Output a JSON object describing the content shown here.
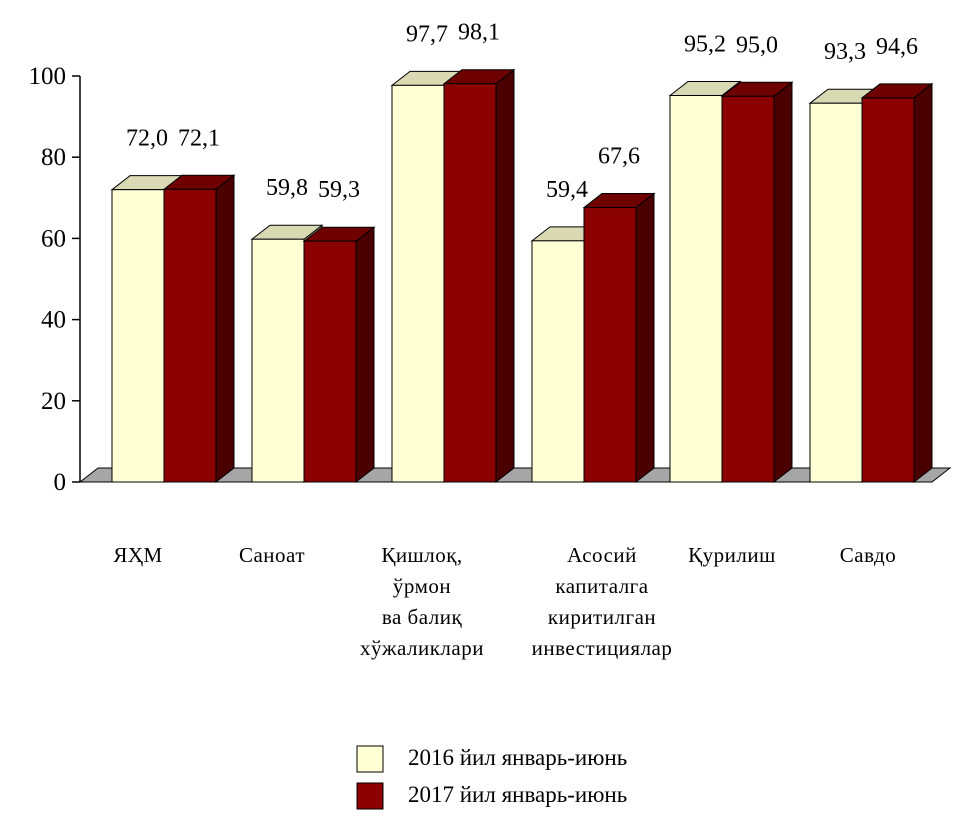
{
  "chart_data": {
    "type": "bar",
    "bar_style": "3d",
    "categories": [
      [
        "ЯҲМ"
      ],
      [
        "Саноат"
      ],
      [
        "Қишлоқ,",
        "ўрмон",
        "ва балиқ",
        "хўжаликлари"
      ],
      [
        "Асосий",
        "капиталга",
        "киритилган",
        "инвестициялар"
      ],
      [
        "Қурилиш"
      ],
      [
        "Савдо"
      ]
    ],
    "series": [
      {
        "name": "2016 йил январь-июнь",
        "values": [
          72.0,
          59.8,
          97.7,
          59.4,
          95.2,
          93.3
        ],
        "labels": [
          "72,0",
          "59,8",
          "97,7",
          "59,4",
          "95,2",
          "93,3"
        ],
        "color": "#ffffd6"
      },
      {
        "name": "2017 йил январь-июнь",
        "values": [
          72.1,
          59.3,
          98.1,
          67.6,
          95.0,
          94.6
        ],
        "labels": [
          "72,1",
          "59,3",
          "98,1",
          "67,6",
          "95,0",
          "94,6"
        ],
        "color": "#8b0000"
      }
    ],
    "yticks": [
      "0",
      "20",
      "40",
      "60",
      "80",
      "100"
    ],
    "ylim": [
      0,
      100
    ],
    "grid": false,
    "legend_position": "bottom"
  }
}
